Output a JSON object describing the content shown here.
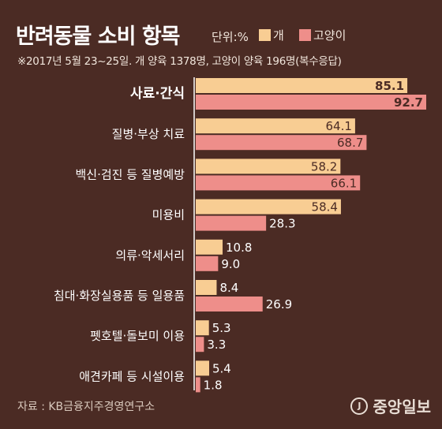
{
  "header": {
    "title": "반려동물 소비 항목",
    "unit": "단위:%",
    "subtitle": "※2017년 5월 23~25일. 개 양육 1378명, 고양이 양육 196명(복수응답)"
  },
  "colors": {
    "dog": "#f8cd93",
    "cat": "#ee8e8a",
    "background": "#4b2b24"
  },
  "chart_data": {
    "type": "bar",
    "orientation": "horizontal",
    "categories": [
      "사료·간식",
      "질병·부상 치료",
      "백신·검진 등 질병예방",
      "미용비",
      "의류·악세서리",
      "침대·화장실용품 등 일용품",
      "펫호텔·돌보미 이용",
      "애견카페 등 시설이용"
    ],
    "series": [
      {
        "name": "개",
        "color": "#f8cd93",
        "values": [
          85.1,
          64.1,
          58.2,
          58.4,
          10.8,
          8.4,
          5.3,
          5.4
        ]
      },
      {
        "name": "고양이",
        "color": "#ee8e8a",
        "values": [
          92.7,
          68.7,
          66.1,
          28.3,
          9.0,
          26.9,
          3.3,
          1.8
        ]
      }
    ],
    "value_labels": [
      [
        "85.1",
        "64.1",
        "58.2",
        "58.4",
        "10.8",
        "8.4",
        "5.3",
        "5.4"
      ],
      [
        "92.7",
        "68.7",
        "66.1",
        "28.3",
        "9.0",
        "26.9",
        "3.3",
        "1.8"
      ]
    ],
    "highlight_category_index": 0,
    "xlim": [
      0,
      100
    ],
    "grid": false,
    "legend": "top-right"
  },
  "footer": {
    "source": "자료 : KB금융지주경영연구소",
    "brand": "중앙일보",
    "brand_mark": "J"
  }
}
